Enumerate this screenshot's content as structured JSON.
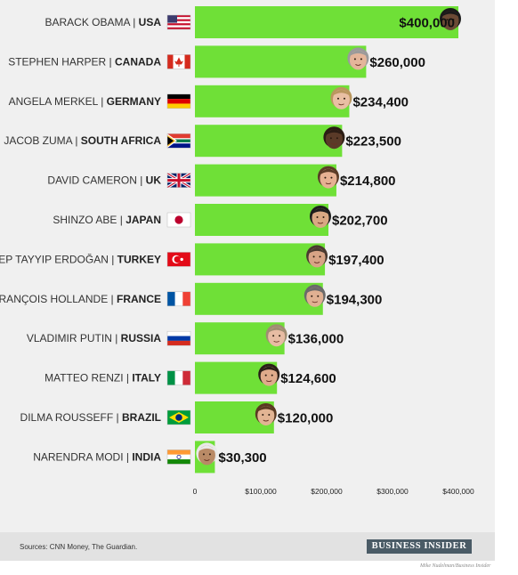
{
  "chart_data": {
    "type": "bar",
    "orientation": "horizontal",
    "categories": [
      {
        "name": "BARACK OBAMA",
        "country": "USA",
        "value": 400000,
        "value_label": "$400,000",
        "flag": "flag-usa",
        "portrait": "portrait-obama",
        "skin": "#6b4a35",
        "hair": "#1a1a1a"
      },
      {
        "name": "STEPHEN HARPER",
        "country": "CANADA",
        "value": 260000,
        "value_label": "$260,000",
        "flag": "flag-canada",
        "portrait": "portrait-harper",
        "skin": "#e4b59a",
        "hair": "#9a9a9a"
      },
      {
        "name": "ANGELA MERKEL",
        "country": "GERMANY",
        "value": 234400,
        "value_label": "$234,400",
        "flag": "flag-germany",
        "portrait": "portrait-merkel",
        "skin": "#e9bfa3",
        "hair": "#b9965e"
      },
      {
        "name": "JACOB ZUMA",
        "country": "SOUTH AFRICA",
        "value": 223500,
        "value_label": "$223,500",
        "flag": "flag-south-africa",
        "portrait": "portrait-zuma",
        "skin": "#5a3a28",
        "hair": "#2b1c14"
      },
      {
        "name": "DAVID CAMERON",
        "country": "UK",
        "value": 214800,
        "value_label": "$214,800",
        "flag": "flag-uk",
        "portrait": "portrait-cameron",
        "skin": "#e6b193",
        "hair": "#5a3b26"
      },
      {
        "name": "SHINZO ABE",
        "country": "JAPAN",
        "value": 202700,
        "value_label": "$202,700",
        "flag": "flag-japan",
        "portrait": "portrait-abe",
        "skin": "#d9a883",
        "hair": "#1c1c1c"
      },
      {
        "name": "RECEP TAYYIP ERDOĞAN",
        "country": "TURKEY",
        "value": 197400,
        "value_label": "$197,400",
        "flag": "flag-turkey",
        "portrait": "portrait-erdogan",
        "skin": "#d8a486",
        "hair": "#4a3a30"
      },
      {
        "name": "FRANÇOIS HOLLANDE",
        "country": "FRANCE",
        "value": 194300,
        "value_label": "$194,300",
        "flag": "flag-france",
        "portrait": "portrait-hollande",
        "skin": "#e0b092",
        "hair": "#6a6a6a"
      },
      {
        "name": "VLADIMIR PUTIN",
        "country": "RUSSIA",
        "value": 136000,
        "value_label": "$136,000",
        "flag": "flag-russia",
        "portrait": "portrait-putin",
        "skin": "#e7bca3",
        "hair": "#9f8d72"
      },
      {
        "name": "MATTEO RENZI",
        "country": "ITALY",
        "value": 124600,
        "value_label": "$124,600",
        "flag": "flag-italy",
        "portrait": "portrait-renzi",
        "skin": "#dfab8b",
        "hair": "#2a1f18"
      },
      {
        "name": "DILMA ROUSSEFF",
        "country": "BRAZIL",
        "value": 120000,
        "value_label": "$120,000",
        "flag": "flag-brazil",
        "portrait": "portrait-rousseff",
        "skin": "#e2b493",
        "hair": "#5a3a22"
      },
      {
        "name": "NARENDRA MODI",
        "country": "INDIA",
        "value": 30300,
        "value_label": "$30,300",
        "flag": "flag-india",
        "portrait": "portrait-modi",
        "skin": "#b98a66",
        "hair": "#e9e9e9"
      }
    ],
    "ticks": [
      0,
      100000,
      200000,
      300000,
      400000
    ],
    "tick_labels": [
      "0",
      "$100,000",
      "$200,000",
      "$300,000",
      "$400,000"
    ],
    "xlim": [
      0,
      400000
    ],
    "title": "",
    "xlabel": "",
    "ylabel": "",
    "grid": false,
    "legend": "none",
    "bar_color": "#6fe037"
  },
  "footer": {
    "sources": "Sources: CNN Money, The Guardian.",
    "brand": "BUSINESS INSIDER",
    "credit": "Mike Nudelman/Business Insider"
  }
}
